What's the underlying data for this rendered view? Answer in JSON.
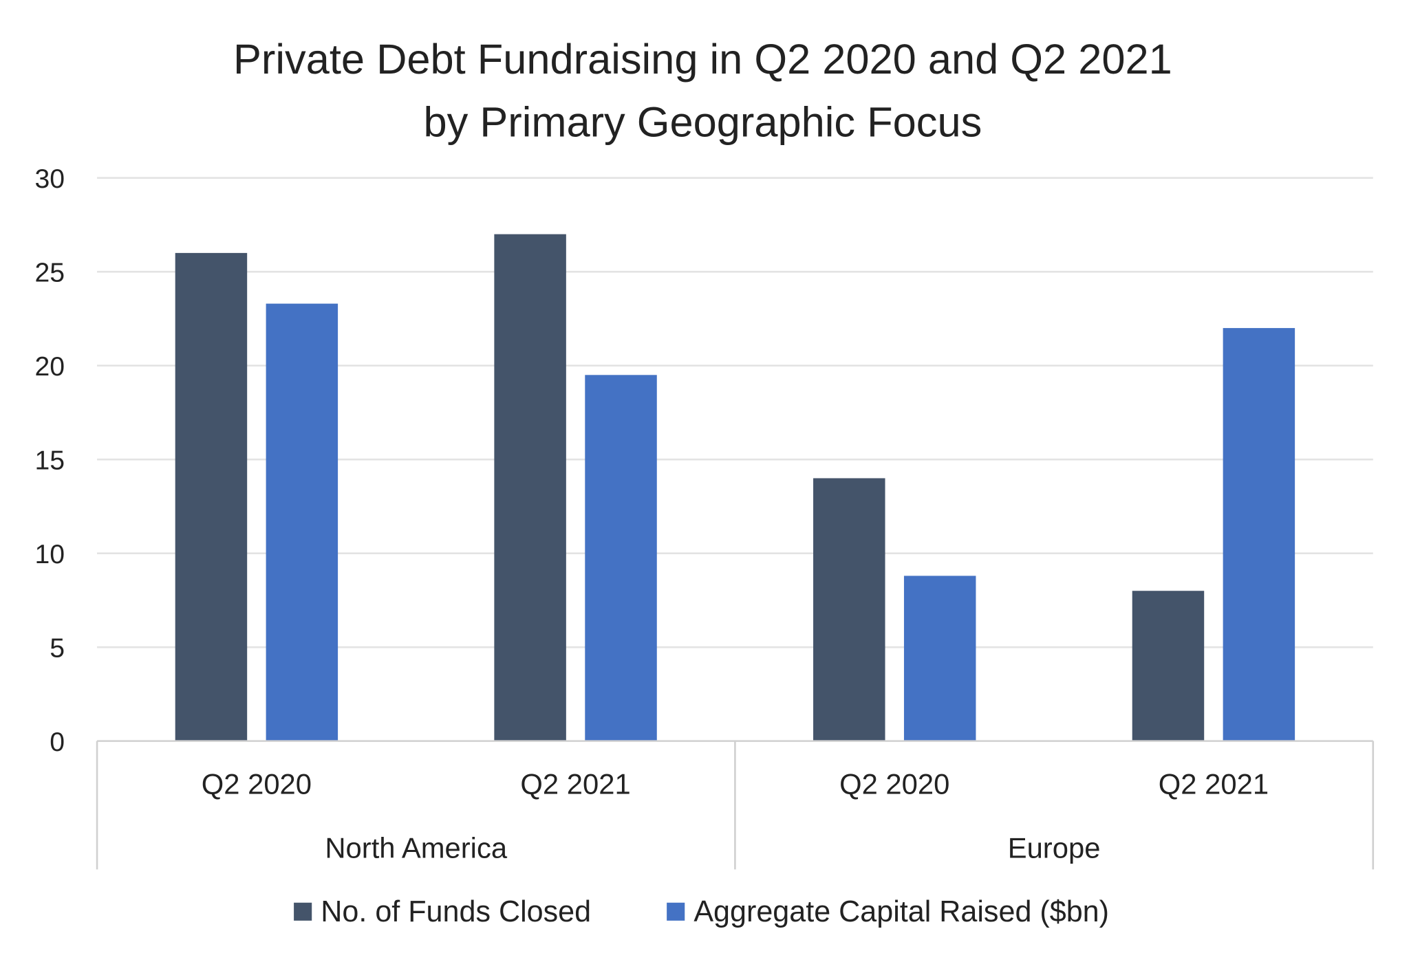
{
  "chart_data": {
    "type": "bar",
    "title": [
      "Private Debt Fundraising in Q2 2020 and Q2 2021",
      "by Primary Geographic Focus"
    ],
    "groups": [
      {
        "label": "North America",
        "categories": [
          "Q2 2020",
          "Q2 2021"
        ]
      },
      {
        "label": "Europe",
        "categories": [
          "Q2 2020",
          "Q2 2021"
        ]
      }
    ],
    "categories": [
      "North America Q2 2020",
      "North America Q2 2021",
      "Europe Q2 2020",
      "Europe Q2 2021"
    ],
    "series": [
      {
        "name": "No. of Funds Closed",
        "color": "#44546A",
        "values": [
          26,
          27,
          14,
          8
        ]
      },
      {
        "name": "Aggregate Capital Raised ($bn)",
        "color": "#4472C4",
        "values": [
          23.3,
          19.5,
          8.8,
          22.0
        ]
      }
    ],
    "yticks": [
      "0",
      "5",
      "10",
      "15",
      "20",
      "25",
      "30"
    ],
    "ylim": [
      0,
      30
    ],
    "grid": true,
    "legend": "bottom",
    "xlabel": "",
    "ylabel": ""
  }
}
